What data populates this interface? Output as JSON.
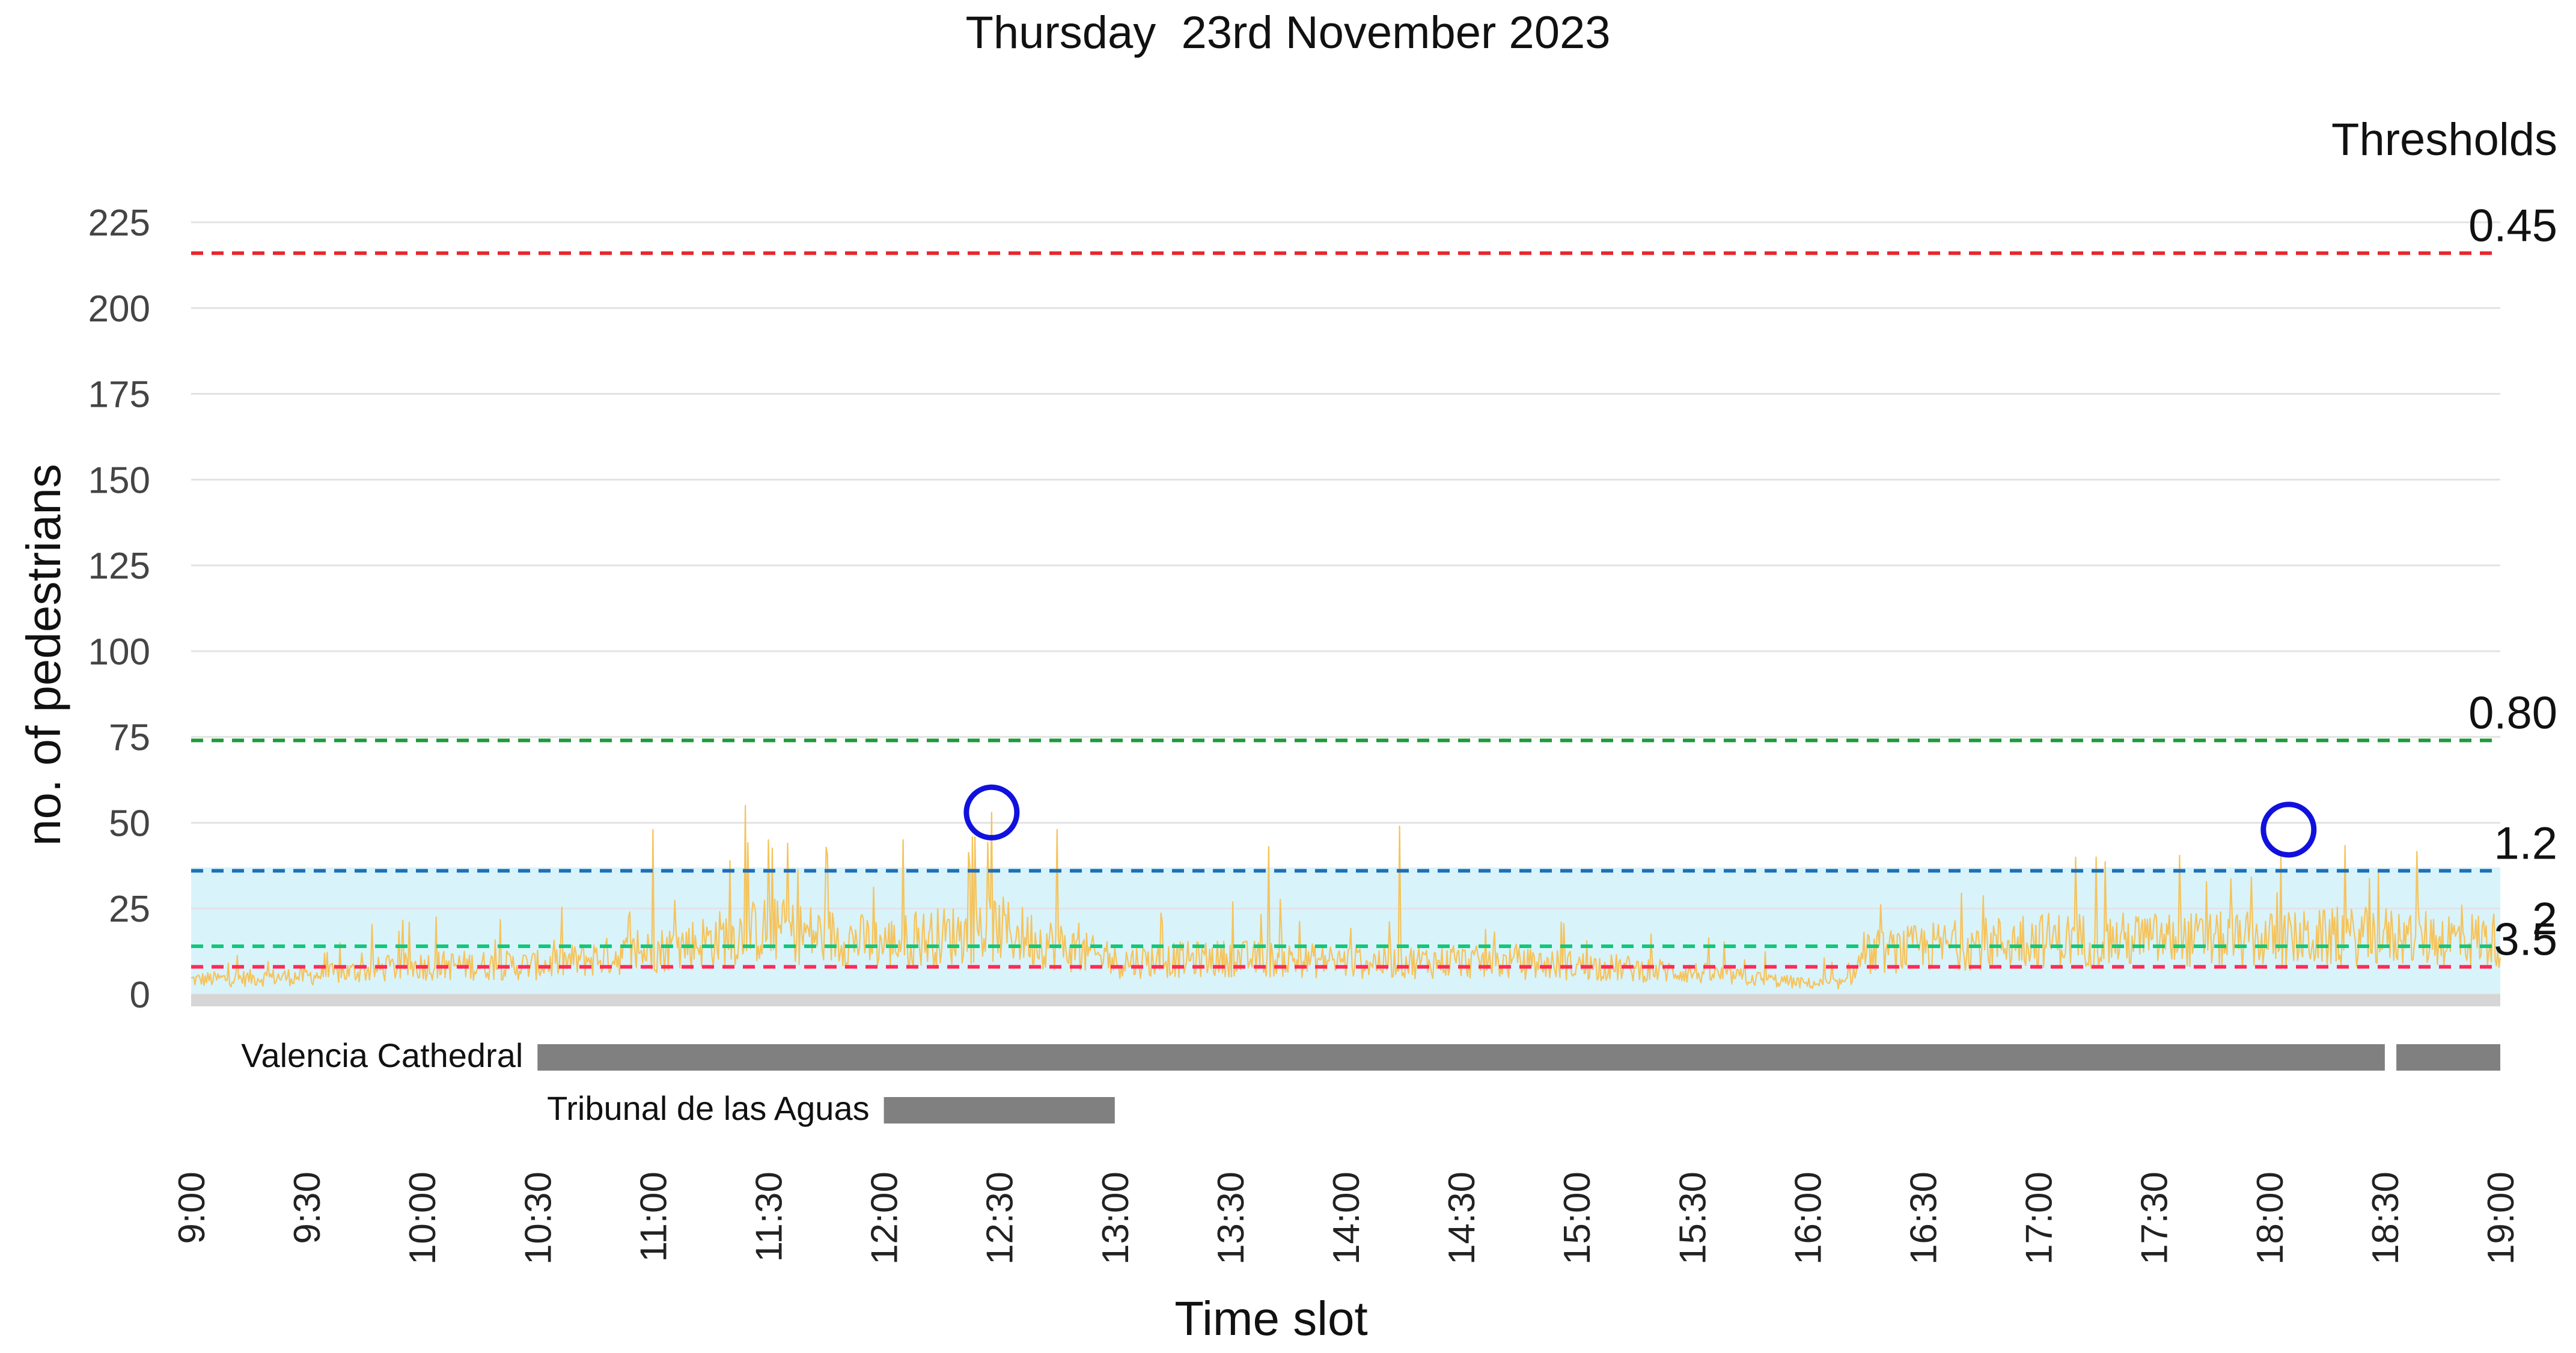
{
  "chart_data": {
    "type": "line",
    "title": "Thursday  23rd November 2023",
    "xlabel": "Time slot",
    "ylabel": "no. of pedestrians",
    "ylim": [
      0,
      225
    ],
    "yticks": [
      0,
      25,
      50,
      75,
      100,
      125,
      150,
      175,
      200,
      225
    ],
    "grid": true,
    "x_range": [
      "9:00",
      "19:00"
    ],
    "xticks": [
      "9:00",
      "9:30",
      "10:00",
      "10:30",
      "11:00",
      "11:30",
      "12:00",
      "12:30",
      "13:00",
      "13:30",
      "14:00",
      "14:30",
      "15:00",
      "15:30",
      "16:00",
      "16:30",
      "17:00",
      "17:30",
      "18:00",
      "18:30",
      "19:00"
    ],
    "series_color": "#f5c35a",
    "profile": [
      {
        "t": "9:00",
        "v": 4
      },
      {
        "t": "9:30",
        "v": 5
      },
      {
        "t": "10:00",
        "v": 8
      },
      {
        "t": "10:30",
        "v": 8
      },
      {
        "t": "11:00",
        "v": 12
      },
      {
        "t": "11:30",
        "v": 18
      },
      {
        "t": "12:00",
        "v": 14
      },
      {
        "t": "12:30",
        "v": 18
      },
      {
        "t": "13:00",
        "v": 9
      },
      {
        "t": "13:30",
        "v": 10
      },
      {
        "t": "14:00",
        "v": 9
      },
      {
        "t": "14:30",
        "v": 9
      },
      {
        "t": "15:00",
        "v": 8
      },
      {
        "t": "15:30",
        "v": 6
      },
      {
        "t": "16:00",
        "v": 3
      },
      {
        "t": "16:10",
        "v": 3
      },
      {
        "t": "16:15",
        "v": 11
      },
      {
        "t": "16:30",
        "v": 13
      },
      {
        "t": "17:00",
        "v": 15
      },
      {
        "t": "17:30",
        "v": 15
      },
      {
        "t": "18:00",
        "v": 15
      },
      {
        "t": "18:30",
        "v": 16
      },
      {
        "t": "19:00",
        "v": 15
      }
    ],
    "spikes": [
      {
        "t": "11:00",
        "v": 48
      },
      {
        "t": "11:24",
        "v": 55
      },
      {
        "t": "11:30",
        "v": 45
      },
      {
        "t": "11:35",
        "v": 44
      },
      {
        "t": "12:05",
        "v": 45
      },
      {
        "t": "12:28",
        "v": 53
      },
      {
        "t": "12:45",
        "v": 48
      },
      {
        "t": "13:40",
        "v": 43
      },
      {
        "t": "14:14",
        "v": 49
      },
      {
        "t": "17:15",
        "v": 40
      },
      {
        "t": "18:03",
        "v": 40
      }
    ],
    "thresholds_title": "Thresholds",
    "thresholds": [
      {
        "label": "0.45",
        "y": 216,
        "color": "#e8262c"
      },
      {
        "label": "0.80",
        "y": 74,
        "color": "#1e9a3a"
      },
      {
        "label": "1.2",
        "y": 36,
        "color": "#1f6fb8"
      },
      {
        "label": "2",
        "y": 14,
        "color": "#12c77a"
      },
      {
        "label": "3.5",
        "y": 8,
        "color": "#ff2a55"
      }
    ],
    "band": {
      "from": 0,
      "to": 37,
      "color": "#d9f3fb"
    },
    "markers": [
      {
        "t": "12:28",
        "v": 53,
        "color": "#1111dd"
      },
      {
        "t": "18:05",
        "v": 48,
        "color": "#1111dd"
      }
    ],
    "events": [
      {
        "label": "Valencia Cathedral",
        "segments": [
          [
            "10:30",
            "18:30"
          ],
          [
            "18:33",
            "19:00"
          ]
        ],
        "color": "#808080"
      },
      {
        "label": "Tribunal de las Aguas",
        "segments": [
          [
            "12:00",
            "13:00"
          ]
        ],
        "color": "#808080"
      }
    ]
  }
}
